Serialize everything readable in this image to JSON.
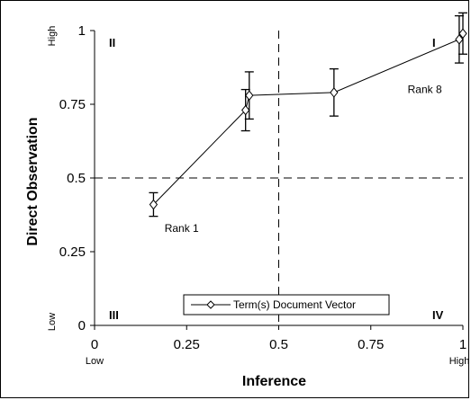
{
  "chart_data": {
    "type": "line",
    "xlabel": "Inference",
    "ylabel": "Direct Observation",
    "xlim": [
      0,
      1
    ],
    "ylim": [
      0,
      1
    ],
    "x_ticks": [
      "0",
      "0.25",
      "0.5",
      "0.75",
      "1"
    ],
    "y_ticks": [
      "0",
      "0.25",
      "0.5",
      "0.75",
      "1"
    ],
    "x_tick_values": [
      0,
      0.25,
      0.5,
      0.75,
      1
    ],
    "y_tick_values": [
      0,
      0.25,
      0.5,
      0.75,
      1
    ],
    "x_low_label": "Low",
    "x_high_label": "High",
    "y_low_label": "Low",
    "y_high_label": "High",
    "reference_lines": {
      "x": 0.5,
      "y": 0.5,
      "style": "dashed"
    },
    "quadrant_labels": {
      "top_left": "II",
      "top_right": "I",
      "bottom_left": "III",
      "bottom_right": "IV"
    },
    "series": [
      {
        "name": "Term(s) Document Vector",
        "marker": "diamond",
        "x": [
          0.16,
          0.41,
          0.42,
          0.65,
          0.99,
          1.0
        ],
        "y": [
          0.41,
          0.73,
          0.78,
          0.79,
          0.97,
          0.99
        ],
        "error": [
          0.04,
          0.07,
          0.08,
          0.08,
          0.08,
          0.07
        ]
      }
    ],
    "annotations": [
      {
        "text": "Rank 1",
        "x": 0.19,
        "y": 0.33
      },
      {
        "text": "Rank 8",
        "x": 0.85,
        "y": 0.8
      }
    ],
    "legend_placement": "bottom-center",
    "grid": false
  }
}
